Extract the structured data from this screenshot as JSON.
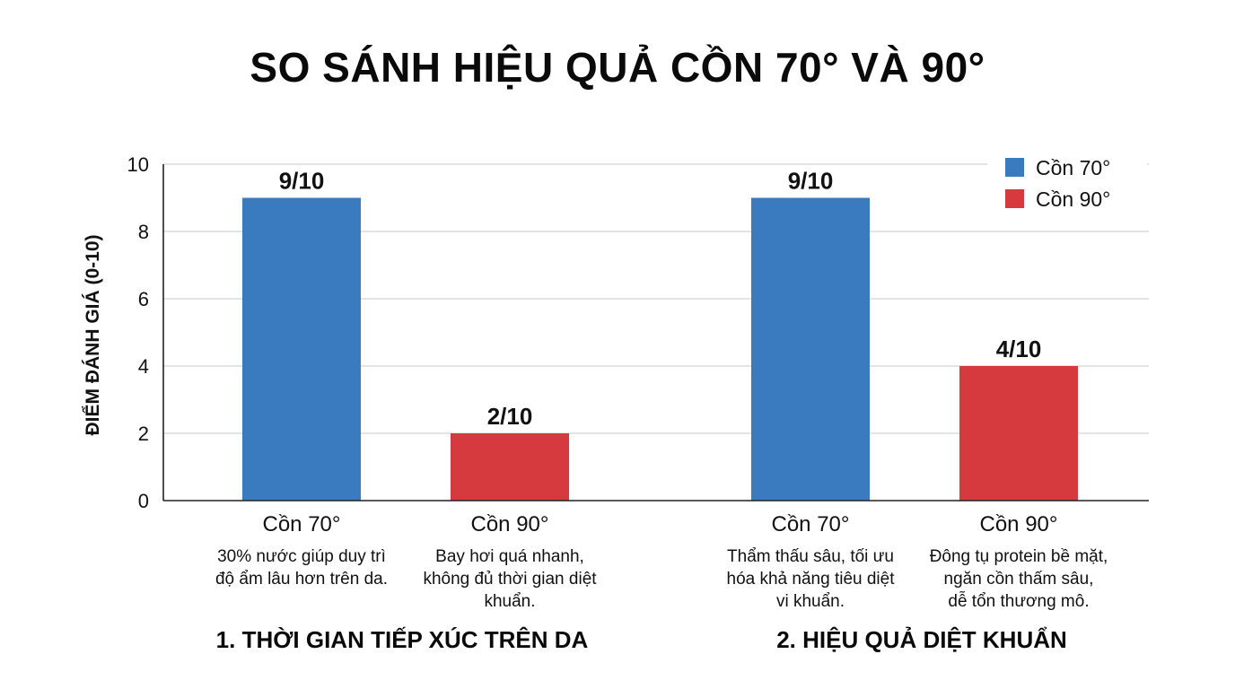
{
  "chart_data": {
    "type": "bar",
    "title": "SO SÁNH HIỆU QUẢ CỒN 70° VÀ 90°",
    "ylabel": "ĐIỂM ĐÁNH GIÁ (0-10)",
    "ylim": [
      0,
      10
    ],
    "yticks": [
      "0",
      "2",
      "4",
      "6",
      "8",
      "10"
    ],
    "grid": true,
    "legend_position": "top-right",
    "groups": [
      {
        "label": "1. THỜI GIAN TIẾP XÚC TRÊN DA",
        "bars": [
          {
            "series": "Cồn 70°",
            "category": "Cồn 70°",
            "value": 9,
            "value_label": "9/10",
            "description": [
              "30% nước giúp duy trì",
              "độ ẩm lâu hơn trên da."
            ]
          },
          {
            "series": "Cồn 90°",
            "category": "Cồn 90°",
            "value": 2,
            "value_label": "2/10",
            "description": [
              "Bay hơi quá nhanh,",
              "không đủ thời gian diệt",
              "khuẩn."
            ]
          }
        ]
      },
      {
        "label": "2. HIỆU QUẢ DIỆT KHUẨN",
        "bars": [
          {
            "series": "Cồn 70°",
            "category": "Cồn 70°",
            "value": 9,
            "value_label": "9/10",
            "description": [
              "Thẩm thấu sâu, tối ưu",
              "hóa khả năng tiêu diệt",
              "vi khuẩn."
            ]
          },
          {
            "series": "Cồn 90°",
            "category": "Cồn 90°",
            "value": 4,
            "value_label": "4/10",
            "description": [
              "Đông tụ protein bề mặt,",
              "ngăn cồn thấm sâu,",
              "dễ tổn thương mô."
            ]
          }
        ]
      }
    ],
    "series": [
      {
        "name": "Cồn 70°",
        "color": "#3a7bbf"
      },
      {
        "name": "Cồn 90°",
        "color": "#d63a3f"
      }
    ]
  }
}
